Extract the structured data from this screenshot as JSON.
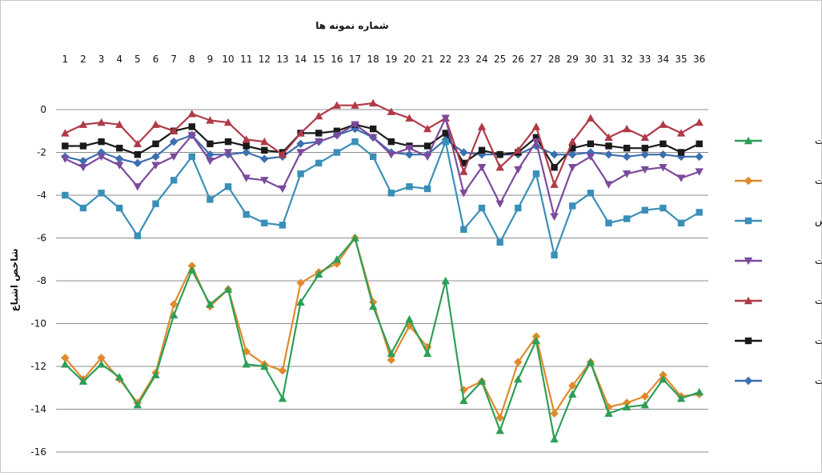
{
  "chart_data": {
    "type": "line",
    "title": "شماره نمونه ها",
    "xlabel": "شماره نمونه ها",
    "ylabel": "شاخص اشباع",
    "ylim": [
      -16,
      0
    ],
    "yticks": [
      0,
      -2,
      -4,
      -6,
      -8,
      -10,
      -12,
      -14,
      -16
    ],
    "x": [
      1,
      2,
      3,
      4,
      5,
      6,
      7,
      8,
      9,
      10,
      11,
      12,
      13,
      14,
      15,
      16,
      17,
      18,
      19,
      20,
      21,
      22,
      23,
      24,
      25,
      26,
      27,
      28,
      29,
      30,
      31,
      32,
      33,
      34,
      35,
      36
    ],
    "x_axis_position": "top",
    "grid": true,
    "legend_position": "right",
    "series": [
      {
        "name": "مگنزیت",
        "color": "#2e9e57",
        "marker": "triangle",
        "values": [
          -11.9,
          -12.7,
          -11.9,
          -12.5,
          -13.8,
          -12.4,
          -9.6,
          -7.5,
          -9.1,
          -8.4,
          -11.9,
          -12.0,
          -13.5,
          -9.0,
          -7.7,
          -7.0,
          -6.0,
          -9.2,
          -11.4,
          -9.8,
          -11.4,
          -8.0,
          -13.6,
          -12.7,
          -15.0,
          -12.6,
          -10.8,
          -15.4,
          -13.3,
          -11.8,
          -14.2,
          -13.9,
          -13.8,
          -12.6,
          -13.5,
          -13.2
        ]
      },
      {
        "name": "هالیت",
        "color": "#e08a2c",
        "marker": "diamond",
        "values": [
          -11.6,
          -12.6,
          -11.6,
          -12.6,
          -13.7,
          -12.3,
          -9.1,
          -7.3,
          -9.2,
          -8.4,
          -11.3,
          -11.9,
          -12.2,
          -8.1,
          -7.6,
          -7.2,
          -6.0,
          -9.0,
          -11.7,
          -10.1,
          -11.1,
          null,
          -13.1,
          -12.7,
          -14.4,
          -11.8,
          -10.6,
          -14.2,
          -12.9,
          -11.8,
          -13.9,
          -13.7,
          -13.4,
          -12.4,
          -13.4,
          -13.3
        ]
      },
      {
        "name": "ژیپس",
        "color": "#3a8fb8",
        "marker": "square",
        "values": [
          -4.0,
          -4.6,
          -3.9,
          -4.6,
          -5.9,
          -4.4,
          -3.3,
          -2.2,
          -4.2,
          -3.6,
          -4.9,
          -5.3,
          -5.4,
          -3.0,
          -2.5,
          -2.0,
          -1.5,
          -2.2,
          -3.9,
          -3.6,
          -3.7,
          -1.5,
          -5.6,
          -4.6,
          -6.2,
          -4.6,
          -3.0,
          -6.8,
          -4.5,
          -3.9,
          -5.3,
          -5.1,
          -4.7,
          -4.6,
          -5.3,
          -4.8
        ]
      },
      {
        "name": "فلوریت",
        "color": "#7b4a9c",
        "marker": "triangle-down",
        "values": [
          -2.3,
          -2.7,
          -2.2,
          -2.6,
          -3.6,
          -2.6,
          -2.2,
          -1.2,
          -2.4,
          -2.0,
          -3.2,
          -3.3,
          -3.7,
          -2.0,
          -1.5,
          -1.2,
          -0.7,
          -1.3,
          -2.1,
          -1.8,
          -2.2,
          -0.4,
          -3.9,
          -2.7,
          -4.4,
          -2.8,
          -1.5,
          -5.0,
          -2.7,
          -2.2,
          -3.5,
          -3.0,
          -2.8,
          -2.7,
          -3.2,
          -2.9
        ]
      },
      {
        "name": "دولومیت",
        "color": "#b03a48",
        "marker": "triangle",
        "values": [
          -1.1,
          -0.7,
          -0.6,
          -0.7,
          -1.6,
          -0.7,
          -1.0,
          -0.2,
          -0.5,
          -0.6,
          -1.4,
          -1.5,
          -2.1,
          -1.1,
          -0.3,
          0.2,
          0.2,
          0.3,
          -0.1,
          -0.4,
          -0.9,
          -0.4,
          -2.9,
          -0.8,
          -2.7,
          -1.9,
          -0.8,
          -3.5,
          -1.5,
          -0.4,
          -1.3,
          -0.9,
          -1.3,
          -0.7,
          -1.1,
          -0.6
        ]
      },
      {
        "name": "کلسیت",
        "color": "#1a1a1a",
        "marker": "square",
        "values": [
          -1.7,
          -1.7,
          -1.5,
          -1.8,
          -2.1,
          -1.6,
          -1.0,
          -0.8,
          -1.6,
          -1.5,
          -1.7,
          -1.9,
          -2.0,
          -1.1,
          -1.1,
          -1.0,
          -0.7,
          -0.9,
          -1.5,
          -1.7,
          -1.7,
          -1.1,
          -2.5,
          -1.9,
          -2.1,
          -2.0,
          -1.3,
          -2.7,
          -1.8,
          -1.6,
          -1.7,
          -1.8,
          -1.8,
          -1.6,
          -2.0,
          -1.6
        ]
      },
      {
        "name": "انیدریت",
        "color": "#3c6fb0",
        "marker": "diamond",
        "values": [
          -2.2,
          -2.4,
          -2.0,
          -2.3,
          -2.5,
          -2.2,
          -1.5,
          -1.2,
          -2.1,
          -2.1,
          -2.0,
          -2.3,
          -2.2,
          -1.6,
          -1.5,
          -1.2,
          -0.9,
          -1.3,
          -2.0,
          -2.1,
          -2.1,
          -1.4,
          -2.0,
          -2.1,
          -2.1,
          -2.1,
          -1.7,
          -2.1,
          -2.1,
          -2.0,
          -2.1,
          -2.2,
          -2.1,
          -2.1,
          -2.2,
          -2.2
        ]
      }
    ]
  }
}
